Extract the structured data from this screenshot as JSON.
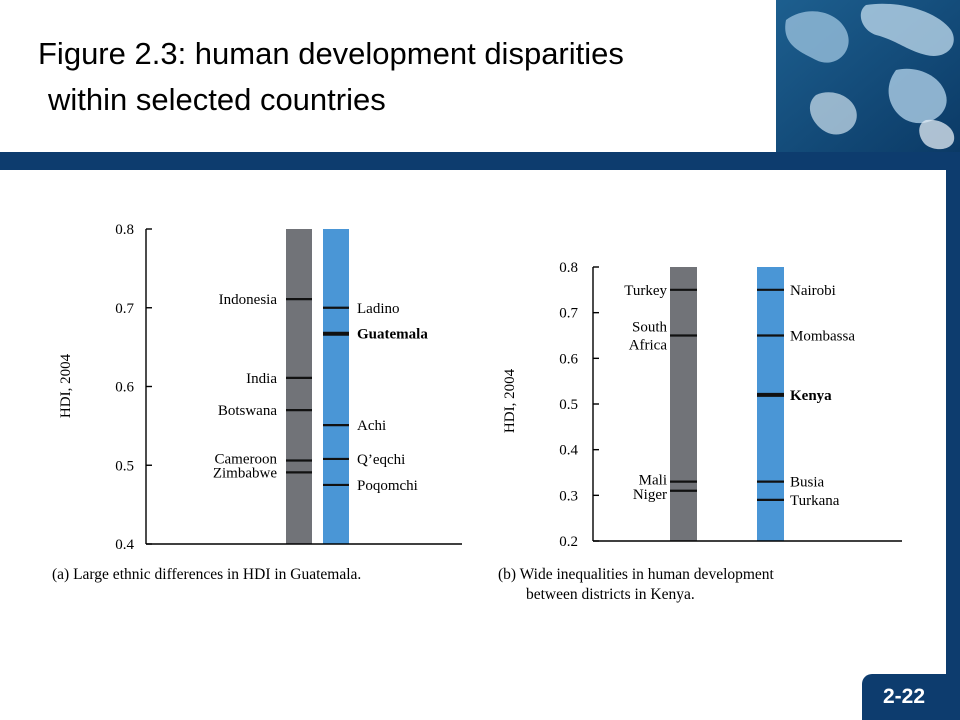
{
  "slide": {
    "title_line1": "Figure 2.3: human development disparities",
    "title_line2": "within selected countries",
    "page_number": "2-22"
  },
  "colors": {
    "dark_blue": "#0d3c6e",
    "gray_bar": "#717378",
    "blue_bar": "#4a96d6"
  },
  "chart_data": [
    {
      "type": "range-bars",
      "caption": "(a) Large ethnic differences in HDI in Guatemala.",
      "ylabel": "HDI, 2004",
      "ylim": [
        0.4,
        0.8
      ],
      "yticks": [
        "0.4",
        "0.5",
        "0.6",
        "0.7",
        "0.8"
      ],
      "series": [
        {
          "bar": "countries",
          "points": [
            {
              "label": "Indonesia",
              "value": 0.711,
              "bold": false
            },
            {
              "label": "India",
              "value": 0.611,
              "bold": false
            },
            {
              "label": "Botswana",
              "value": 0.57,
              "bold": false
            },
            {
              "label": "Cameroon",
              "value": 0.506,
              "bold": false
            },
            {
              "label": "Zimbabwe",
              "value": 0.491,
              "bold": false
            }
          ]
        },
        {
          "bar": "ethnic groups",
          "points": [
            {
              "label": "Ladino",
              "value": 0.7,
              "bold": false
            },
            {
              "label": "Guatemala",
              "value": 0.667,
              "bold": true
            },
            {
              "label": "Achi",
              "value": 0.551,
              "bold": false
            },
            {
              "label": "Q’eqchi",
              "value": 0.508,
              "bold": false
            },
            {
              "label": "Poqomchi",
              "value": 0.475,
              "bold": false
            }
          ]
        }
      ]
    },
    {
      "type": "range-bars",
      "caption_line1": "(b) Wide inequalities in human development",
      "caption_line2": "between districts in Kenya.",
      "ylabel": "HDI, 2004",
      "ylim": [
        0.2,
        0.8
      ],
      "yticks": [
        "0.2",
        "0.3",
        "0.4",
        "0.5",
        "0.6",
        "0.7",
        "0.8"
      ],
      "series": [
        {
          "bar": "countries",
          "points": [
            {
              "label": "Turkey",
              "value": 0.75,
              "bold": false
            },
            {
              "label": "South Africa",
              "value": 0.65,
              "bold": false
            },
            {
              "label": "Mali",
              "value": 0.33,
              "bold": false
            },
            {
              "label": "Niger",
              "value": 0.31,
              "bold": false
            }
          ]
        },
        {
          "bar": "districts",
          "points": [
            {
              "label": "Nairobi",
              "value": 0.75,
              "bold": false
            },
            {
              "label": "Mombassa",
              "value": 0.65,
              "bold": false
            },
            {
              "label": "Kenya",
              "value": 0.52,
              "bold": true
            },
            {
              "label": "Busia",
              "value": 0.33,
              "bold": false
            },
            {
              "label": "Turkana",
              "value": 0.29,
              "bold": false
            }
          ]
        }
      ]
    }
  ]
}
